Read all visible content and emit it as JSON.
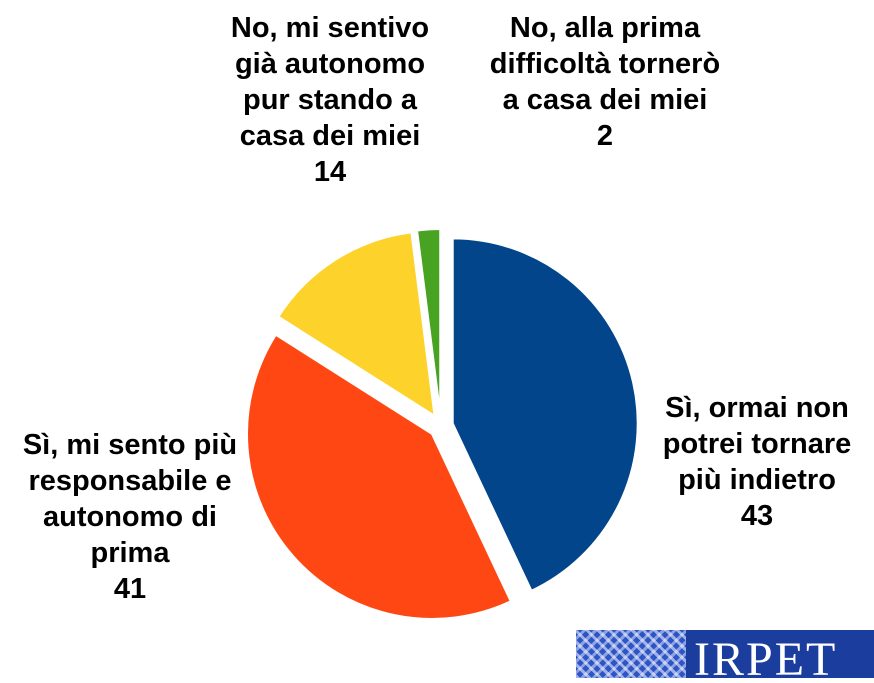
{
  "chart_data": {
    "type": "pie",
    "title": "",
    "slices": [
      {
        "label": "Sì, ormai non potrei tornare più indietro",
        "value": 43,
        "value_label": "43",
        "color": "#02458a",
        "exploded": true
      },
      {
        "label": "Sì, mi sento più responsabile e autonomo di prima",
        "value": 41,
        "value_label": "41",
        "color": "#ff4713",
        "exploded": true
      },
      {
        "label": "No, mi sentivo già autonomo pur stando a casa dei miei",
        "value": 14,
        "value_label": "14",
        "color": "#fdd22b",
        "exploded": true
      },
      {
        "label": "No, alla prima difficoltà tornerò a casa dei miei",
        "value": 2,
        "value_label": "2",
        "color": "#49a322",
        "exploded": true
      }
    ]
  },
  "logo": {
    "text": "IRPET"
  }
}
